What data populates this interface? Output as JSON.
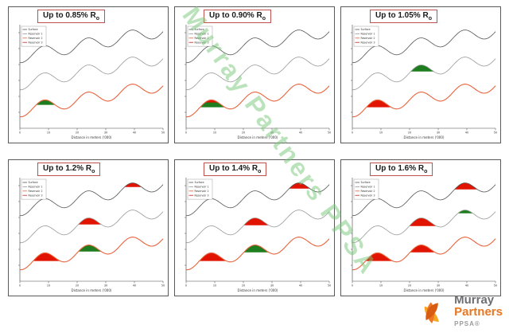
{
  "watermark": "Murray Partners PPSA",
  "logo": {
    "name_top": "Murray",
    "name_bottom": "Partners",
    "sub": "PPSA®"
  },
  "legend_colors": [
    "#555555",
    "#9a9a9a",
    "#e8643c",
    "#cc2222"
  ],
  "fill_colors": {
    "oil": "#1e7d1e",
    "gas": "#e01400"
  },
  "waveform": {
    "amplitude": 8,
    "period": 55,
    "phase": 57.75,
    "slope": 0.18,
    "crest_x": [
      44,
      99,
      154
    ]
  },
  "chart_data": [
    {
      "type": "line",
      "title_main": "Up to 0.85% R",
      "title_sub": "o",
      "xlabel": "Distance in meters ('000)",
      "xticks": [
        "0",
        "10",
        "20",
        "30",
        "40",
        "50"
      ],
      "x_range": [
        0,
        50
      ],
      "legend": [
        "Surface",
        "Reservoir 1",
        "Reservoir 2",
        "Reservoir 3"
      ],
      "legend_position": "top-left",
      "grid": false,
      "series": [
        {
          "name": "Surface",
          "color": "#555555",
          "offset": 46
        },
        {
          "name": "Reservoir 1",
          "color": "#9a9a9a",
          "offset": 80
        },
        {
          "name": "Reservoir 2",
          "color": "#e8643c",
          "offset": 114
        }
      ],
      "fills": [
        {
          "series": 2,
          "crest": 1,
          "color": "#1e7d1e",
          "depth": 6
        }
      ]
    },
    {
      "type": "line",
      "title_main": "Up to 0.90% R",
      "title_sub": "o",
      "xlabel": "Distance in meters ('000)",
      "xticks": [
        "0",
        "10",
        "20",
        "30",
        "40",
        "50"
      ],
      "x_range": [
        0,
        50
      ],
      "legend": [
        "Surface",
        "Reservoir 1",
        "Reservoir 2",
        "Reservoir 3"
      ],
      "legend_position": "top-left",
      "grid": false,
      "series": [
        {
          "name": "Surface",
          "color": "#555555",
          "offset": 46
        },
        {
          "name": "Reservoir 1",
          "color": "#9a9a9a",
          "offset": 80
        },
        {
          "name": "Reservoir 2",
          "color": "#e8643c",
          "offset": 114
        }
      ],
      "fills": [
        {
          "series": 2,
          "crest": 1,
          "color": "#1e7d1e",
          "depth": 9
        },
        {
          "series": 2,
          "crest": 1,
          "color": "#e01400",
          "depth": 3
        }
      ]
    },
    {
      "type": "line",
      "title_main": "Up to 1.05% R",
      "title_sub": "o",
      "xlabel": "Distance in meters ('000)",
      "xticks": [
        "0",
        "10",
        "20",
        "30",
        "40",
        "50"
      ],
      "x_range": [
        0,
        50
      ],
      "legend": [
        "Surface",
        "Reservoir 1",
        "Reservoir 2",
        "Reservoir 3"
      ],
      "legend_position": "top-left",
      "grid": false,
      "series": [
        {
          "name": "Surface",
          "color": "#555555",
          "offset": 46
        },
        {
          "name": "Reservoir 1",
          "color": "#9a9a9a",
          "offset": 80
        },
        {
          "name": "Reservoir 2",
          "color": "#e8643c",
          "offset": 114
        }
      ],
      "fills": [
        {
          "series": 2,
          "crest": 1,
          "color": "#e01400",
          "depth": 9
        },
        {
          "series": 1,
          "crest": 2,
          "color": "#1e7d1e",
          "depth": 8
        }
      ]
    },
    {
      "type": "line",
      "title_main": "Up to 1.2% R",
      "title_sub": "o",
      "xlabel": "Distance in meters ('000)",
      "xticks": [
        "0",
        "10",
        "20",
        "30",
        "40",
        "50"
      ],
      "x_range": [
        0,
        50
      ],
      "legend": [
        "Surface",
        "Reservoir 1",
        "Reservoir 2",
        "Reservoir 3"
      ],
      "legend_position": "top-left",
      "grid": false,
      "series": [
        {
          "name": "Surface",
          "color": "#555555",
          "offset": 46
        },
        {
          "name": "Reservoir 1",
          "color": "#9a9a9a",
          "offset": 80
        },
        {
          "name": "Reservoir 2",
          "color": "#e8643c",
          "offset": 114
        }
      ],
      "fills": [
        {
          "series": 2,
          "crest": 1,
          "color": "#e01400",
          "depth": 10
        },
        {
          "series": 2,
          "crest": 2,
          "color": "#1e7d1e",
          "depth": 8
        },
        {
          "series": 1,
          "crest": 2,
          "color": "#e01400",
          "depth": 8
        },
        {
          "series": 0,
          "crest": 3,
          "color": "#e01400",
          "depth": 5
        }
      ]
    },
    {
      "type": "line",
      "title_main": "Up to 1.4% R",
      "title_sub": "o",
      "xlabel": "Distance in meters ('000)",
      "xticks": [
        "0",
        "10",
        "20",
        "30",
        "40",
        "50"
      ],
      "x_range": [
        0,
        50
      ],
      "legend": [
        "Surface",
        "Reservoir 1",
        "Reservoir 2",
        "Reservoir 3"
      ],
      "legend_position": "top-left",
      "grid": false,
      "series": [
        {
          "name": "Surface",
          "color": "#555555",
          "offset": 46
        },
        {
          "name": "Reservoir 1",
          "color": "#9a9a9a",
          "offset": 80
        },
        {
          "name": "Reservoir 2",
          "color": "#e8643c",
          "offset": 114
        }
      ],
      "fills": [
        {
          "series": 2,
          "crest": 1,
          "color": "#e01400",
          "depth": 10
        },
        {
          "series": 2,
          "crest": 2,
          "color": "#1e7d1e",
          "depth": 9
        },
        {
          "series": 1,
          "crest": 2,
          "color": "#e01400",
          "depth": 9
        },
        {
          "series": 0,
          "crest": 3,
          "color": "#e01400",
          "depth": 7
        }
      ]
    },
    {
      "type": "line",
      "title_main": "Up to 1.6% R",
      "title_sub": "o",
      "xlabel": "Distance in meters ('000)",
      "xticks": [
        "0",
        "10",
        "20",
        "30",
        "40",
        "50"
      ],
      "x_range": [
        0,
        50
      ],
      "legend": [
        "Surface",
        "Reservoir 1",
        "Reservoir 2",
        "Reservoir 3"
      ],
      "legend_position": "top-left",
      "grid": false,
      "series": [
        {
          "name": "Surface",
          "color": "#555555",
          "offset": 46
        },
        {
          "name": "Reservoir 1",
          "color": "#9a9a9a",
          "offset": 80
        },
        {
          "name": "Reservoir 2",
          "color": "#e8643c",
          "offset": 114
        }
      ],
      "fills": [
        {
          "series": 2,
          "crest": 1,
          "color": "#e01400",
          "depth": 10
        },
        {
          "series": 2,
          "crest": 2,
          "color": "#e01400",
          "depth": 9
        },
        {
          "series": 1,
          "crest": 2,
          "color": "#e01400",
          "depth": 10
        },
        {
          "series": 1,
          "crest": 3,
          "color": "#1e7d1e",
          "depth": 4
        },
        {
          "series": 0,
          "crest": 3,
          "color": "#e01400",
          "depth": 8
        }
      ]
    }
  ]
}
